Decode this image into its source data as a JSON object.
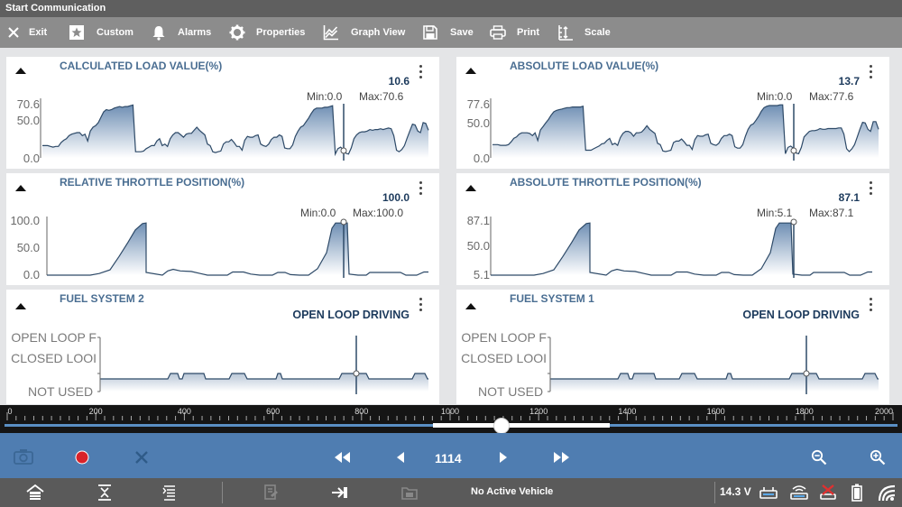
{
  "titlebar": {
    "title": "Start Communication"
  },
  "toolbar": {
    "exit": "Exit",
    "custom": "Custom",
    "alarms": "Alarms",
    "properties": "Properties",
    "graph_view": "Graph View",
    "save": "Save",
    "print": "Print",
    "scale": "Scale"
  },
  "panels": [
    {
      "title": "CALCULATED LOAD VALUE(%)",
      "value": "10.6",
      "min": "Min:0.0",
      "max": "Max:70.6",
      "y_labels": [
        "70.6",
        "50.0",
        "0.0"
      ],
      "y_range": [
        0,
        70.6
      ],
      "series": [
        16,
        16,
        16,
        15,
        14,
        15,
        15,
        20,
        23,
        25,
        29,
        31,
        32,
        33,
        33,
        29,
        31,
        22,
        35,
        40,
        42,
        46,
        53,
        60,
        63,
        62,
        63,
        65,
        66,
        67,
        66,
        67,
        67,
        68,
        69,
        8,
        8,
        8,
        9,
        12,
        14,
        16,
        16,
        22,
        25,
        16,
        18,
        15,
        25,
        30,
        33,
        33,
        30,
        27,
        31,
        32,
        32,
        36,
        40,
        36,
        33,
        30,
        18,
        16,
        8,
        7,
        8,
        9,
        18,
        21,
        21,
        24,
        20,
        15,
        15,
        10,
        23,
        28,
        27,
        27,
        29,
        30,
        18,
        16,
        15,
        18,
        24,
        27,
        27,
        30,
        28,
        13,
        12,
        12,
        17,
        28,
        35,
        40,
        42,
        47,
        52,
        58,
        63,
        65,
        65,
        65,
        66,
        66,
        67,
        68,
        5,
        12,
        14,
        11,
        6,
        5,
        13,
        25,
        30,
        33,
        34,
        34,
        35,
        37,
        36,
        37,
        37,
        38,
        37,
        38,
        39,
        38,
        29,
        10,
        8,
        11,
        16,
        26,
        35,
        44,
        43,
        35,
        33,
        46,
        45,
        36
      ]
    },
    {
      "title": "ABSOLUTE LOAD VALUE(%)",
      "value": "13.7",
      "min": "Min:0.0",
      "max": "Max:77.6",
      "y_labels": [
        "77.6",
        "50.0",
        "0.0"
      ],
      "y_range": [
        0,
        77.6
      ],
      "series": [
        19,
        19,
        19,
        18,
        18,
        18,
        19,
        23,
        28,
        30,
        34,
        36,
        36,
        36,
        35,
        32,
        36,
        25,
        40,
        45,
        50,
        55,
        61,
        66,
        68,
        69,
        70,
        71,
        72,
        72,
        73,
        73,
        73,
        73,
        74,
        11,
        11,
        11,
        13,
        15,
        17,
        20,
        21,
        25,
        28,
        19,
        21,
        18,
        29,
        35,
        38,
        38,
        36,
        31,
        36,
        36,
        37,
        41,
        46,
        41,
        38,
        35,
        21,
        19,
        10,
        9,
        10,
        11,
        22,
        24,
        24,
        27,
        23,
        18,
        18,
        12,
        26,
        32,
        31,
        31,
        33,
        34,
        21,
        19,
        18,
        21,
        28,
        32,
        32,
        34,
        32,
        16,
        14,
        14,
        19,
        31,
        41,
        47,
        49,
        54,
        60,
        67,
        72,
        74,
        75,
        75,
        75,
        75,
        76,
        76,
        6,
        15,
        17,
        14,
        7,
        6,
        15,
        30,
        34,
        38,
        39,
        39,
        40,
        42,
        41,
        41,
        42,
        42,
        42,
        42,
        43,
        43,
        34,
        13,
        9,
        13,
        19,
        30,
        41,
        51,
        50,
        41,
        38,
        52,
        52,
        41
      ]
    },
    {
      "title": "RELATIVE THROTTLE POSITION(%)",
      "value": "100.0",
      "min": "Min:0.0",
      "max": "Max:100.0",
      "y_labels": [
        "100.0",
        "50.0",
        "0.0"
      ],
      "y_range": [
        0,
        100
      ],
      "series": [
        0,
        0,
        0,
        0,
        0,
        0,
        0,
        0,
        0,
        0,
        0,
        0,
        0,
        0,
        0,
        0,
        0,
        0,
        0,
        0,
        0,
        0,
        0,
        0,
        0,
        0,
        0,
        0,
        0,
        0,
        0,
        0,
        0,
        0,
        0,
        0,
        0,
        0,
        0,
        0,
        0,
        0,
        0,
        0,
        0,
        0,
        0,
        0,
        0,
        0,
        0,
        0,
        0,
        0,
        0,
        0,
        0,
        0,
        0,
        0,
        0,
        0,
        0,
        0,
        0,
        0,
        0,
        0,
        0,
        0,
        0,
        0,
        0,
        0,
        0,
        0,
        0,
        0,
        0,
        0,
        0,
        0,
        0,
        0,
        0,
        0,
        0,
        0,
        0,
        0,
        0,
        0,
        0,
        0,
        0,
        0,
        0,
        0,
        0,
        0,
        0,
        0,
        0,
        0,
        0,
        0,
        0,
        0,
        0,
        0,
        0,
        0,
        0,
        0,
        0,
        0,
        0,
        0,
        0,
        0,
        0,
        0,
        0,
        0,
        0,
        0,
        0,
        0,
        0,
        0,
        0,
        0,
        0,
        0,
        0,
        0,
        0,
        0,
        0,
        0,
        0,
        0,
        0,
        0,
        0,
        0
      ]
    },
    {
      "title": "ABSOLUTE THROTTLE POSITION(%)",
      "value": "87.1",
      "min": "Min:5.1",
      "max": "Max:87.1",
      "y_labels": [
        "87.1",
        "50.0",
        "5.1"
      ],
      "y_range": [
        5.1,
        87.1
      ],
      "series": [
        5,
        5,
        5,
        5,
        5,
        5,
        5,
        5,
        5,
        5,
        5,
        5,
        5,
        5,
        5,
        5,
        5,
        5,
        5,
        5,
        5,
        5,
        5,
        5,
        5,
        5,
        5,
        5,
        5,
        5,
        5,
        5,
        5,
        5,
        5,
        5,
        5,
        5,
        5,
        5,
        5,
        5,
        5,
        5,
        5,
        5,
        5,
        5,
        5,
        5,
        5,
        5,
        5,
        5,
        5,
        5,
        5,
        5,
        5,
        5,
        5,
        5,
        5,
        5,
        5,
        5,
        5,
        5,
        5,
        5,
        5,
        5,
        5,
        5,
        5,
        5,
        5,
        5,
        5,
        5,
        5,
        5,
        5,
        5,
        5,
        5,
        5,
        5,
        5,
        5,
        5,
        5,
        5,
        5,
        5,
        5,
        5,
        5,
        5,
        5,
        5,
        5,
        5,
        5,
        5,
        5,
        5,
        5,
        5,
        5,
        5,
        5,
        5,
        5,
        5,
        5,
        5,
        5,
        5,
        5,
        5,
        5,
        5,
        5,
        5,
        5,
        5,
        5,
        5,
        5,
        5,
        5,
        5,
        5,
        5,
        5,
        5,
        5,
        5,
        5,
        5,
        5,
        5,
        5,
        5,
        5
      ]
    },
    {
      "title": "FUEL SYSTEM 2",
      "value": "OPEN LOOP DRIVING",
      "y_labels": [
        "OPEN LOOP F",
        "CLOSED LOOI",
        "NOT USED"
      ]
    },
    {
      "title": "FUEL SYSTEM 1",
      "value": "OPEN LOOP DRIVING",
      "y_labels": [
        "OPEN LOOP F",
        "CLOSED LOOI",
        "NOT USED"
      ]
    }
  ],
  "timeline": {
    "ticks": [
      "0",
      "200",
      "400",
      "600",
      "800",
      "1000",
      "1200",
      "1400",
      "1600",
      "1800",
      "2000"
    ],
    "range": [
      0,
      2000
    ],
    "position": 1114,
    "selection": [
      1000,
      1400
    ]
  },
  "playback": {
    "frame": "1114",
    "record_color": "#d8232a"
  },
  "statusbar": {
    "vehicle": "No Active Vehicle",
    "voltage": "14.3 V"
  },
  "colors": {
    "accent": "#4f7db1",
    "title_text": "#4a6e92",
    "value_text": "#1c3a5c",
    "plot_line": "#2e4a68"
  }
}
